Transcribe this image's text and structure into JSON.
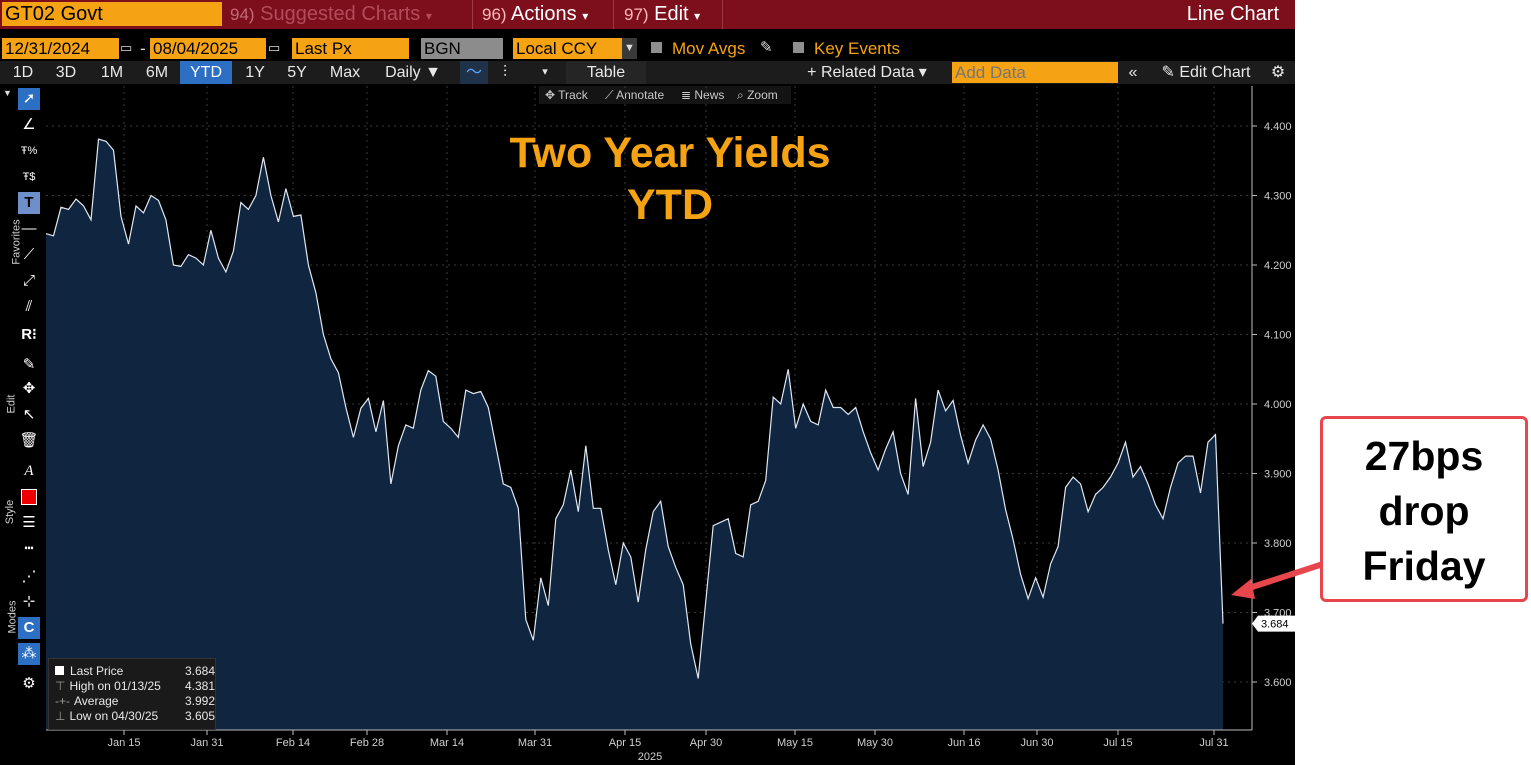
{
  "header": {
    "ticker": "GT02 Govt",
    "menus": [
      {
        "num": "94)",
        "label": "Suggested Charts",
        "arrow": "▾"
      },
      {
        "num": "96)",
        "label": "Actions",
        "arrow": "▾"
      },
      {
        "num": "97)",
        "label": "Edit",
        "arrow": "▾"
      }
    ],
    "chart_type": "Line Chart"
  },
  "settings": {
    "start_date": "12/31/2024",
    "dash": "-",
    "end_date": "08/04/2025",
    "field": "Last Px",
    "source": "BGN",
    "currency": "Local CCY",
    "mov_avgs": "Mov Avgs",
    "key_events": "Key Events"
  },
  "periods": [
    "1D",
    "3D",
    "1M",
    "6M",
    "YTD",
    "1Y",
    "5Y",
    "Max"
  ],
  "selected_period": "YTD",
  "frequency": "Daily ▼",
  "table_label": "Table",
  "related_data": "+ Related Data ▾",
  "add_data_placeholder": "Add Data",
  "edit_chart": "Edit Chart",
  "tools": [
    "Track",
    "Annotate",
    "News",
    "Zoom"
  ],
  "side_labels": {
    "favorites": "Favorites",
    "edit": "Edit",
    "style": "Style",
    "modes": "Modes"
  },
  "legend": {
    "rows": [
      {
        "label": "Last Price",
        "value": "3.684"
      },
      {
        "label": "High on 01/13/25",
        "value": "4.381"
      },
      {
        "label": "Average",
        "value": "3.992"
      },
      {
        "label": "Low on 04/30/25",
        "value": "3.605"
      }
    ]
  },
  "last_value_tag": "3.684",
  "callout": {
    "lines": [
      "27bps",
      "drop",
      "Friday"
    ]
  },
  "colors": {
    "accent": "#f5a313",
    "header_bg": "#7d0f1c",
    "area_fill": "#0f2540",
    "line": "#dfe8f2",
    "callout_border": "#e8464d"
  },
  "chart_data": {
    "type": "area",
    "title": "Two Year Yields\nYTD",
    "xlabel": "2025",
    "ylabel": "",
    "ylim": [
      3.52,
      4.42
    ],
    "yticks": [
      "4.400",
      "4.300",
      "4.200",
      "4.100",
      "4.000",
      "3.900",
      "3.800",
      "3.700",
      "3.600"
    ],
    "xticks": [
      "Jan 15",
      "Jan 31",
      "Feb 14",
      "Feb 28",
      "Mar 14",
      "Mar 31",
      "Apr 15",
      "Apr 30",
      "May 15",
      "May 30",
      "Jun 16",
      "Jun 30",
      "Jul 15",
      "Jul 31"
    ],
    "grid": true,
    "series": [
      {
        "values": [
          4.245,
          4.242,
          4.283,
          4.28,
          4.295,
          4.285,
          4.265,
          4.381,
          4.378,
          4.365,
          4.27,
          4.23,
          4.285,
          4.275,
          4.3,
          4.293,
          4.265,
          4.2,
          4.198,
          4.215,
          4.21,
          4.2,
          4.25,
          4.21,
          4.19,
          4.22,
          4.29,
          4.28,
          4.3,
          4.355,
          4.3,
          4.262,
          4.31,
          4.27,
          4.272,
          4.2,
          4.16,
          4.1,
          4.065,
          4.045,
          3.995,
          3.952,
          3.994,
          4.008,
          3.96,
          4.005,
          3.885,
          3.94,
          3.97,
          3.965,
          4.02,
          4.048,
          4.04,
          3.975,
          3.965,
          3.952,
          4.02,
          4.015,
          4.018,
          3.995,
          3.94,
          3.885,
          3.88,
          3.85,
          3.69,
          3.66,
          3.75,
          3.71,
          3.835,
          3.855,
          3.905,
          3.845,
          3.94,
          3.85,
          3.85,
          3.79,
          3.74,
          3.8,
          3.78,
          3.715,
          3.79,
          3.845,
          3.86,
          3.795,
          3.765,
          3.74,
          3.655,
          3.605,
          3.715,
          3.825,
          3.83,
          3.835,
          3.785,
          3.78,
          3.855,
          3.86,
          3.89,
          4.01,
          4.0,
          4.05,
          3.965,
          4.0,
          3.975,
          3.97,
          4.02,
          3.995,
          3.995,
          3.985,
          3.995,
          3.96,
          3.93,
          3.905,
          3.935,
          3.96,
          3.9,
          3.87,
          4.008,
          3.91,
          3.945,
          4.02,
          3.99,
          4.005,
          3.955,
          3.915,
          3.948,
          3.97,
          3.95,
          3.905,
          3.848,
          3.805,
          3.755,
          3.72,
          3.75,
          3.722,
          3.77,
          3.795,
          3.88,
          3.895,
          3.885,
          3.845,
          3.87,
          3.88,
          3.895,
          3.915,
          3.945,
          3.895,
          3.91,
          3.885,
          3.855,
          3.835,
          3.88,
          3.915,
          3.925,
          3.925,
          3.872,
          3.945,
          3.956,
          3.684
        ]
      }
    ]
  }
}
